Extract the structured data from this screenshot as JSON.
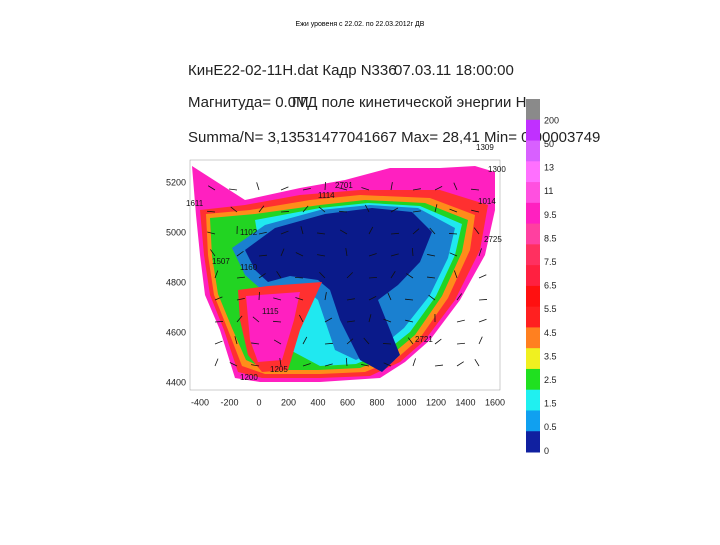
{
  "page_title": "Ежи уровеня с 22.02. по 22.03.2012г ДВ",
  "header": {
    "file": "КинЕ22-02-11Н.dat Кадр N336",
    "datetime": "07.03.11 18:00:00",
    "magnitude": "Магнитуда= 0.0М",
    "field": "ГГД поле кинетической энергии Н.",
    "summary": "Summa/N= 3,13531477041667 Max= 28,41 Min= 0,00003749"
  },
  "x_ticks": [
    "-400",
    "-200",
    "0",
    "200",
    "400",
    "600",
    "800",
    "1000",
    "1200",
    "1400",
    "1600"
  ],
  "y_ticks": [
    "5200",
    "5000",
    "4800",
    "4600",
    "4400"
  ],
  "colorbar": [
    "200",
    "50",
    "13",
    "11",
    "9.5",
    "8.5",
    "7.5",
    "6.5",
    "5.5",
    "4.5",
    "3.5",
    "2.5",
    "1.5",
    "0.5",
    "0"
  ],
  "stations": [
    "1309",
    "2701",
    "1114",
    "1102",
    "1507",
    "1160",
    "1115",
    "1205",
    "1200",
    "2725",
    "1014",
    "1300",
    "1611",
    "2721"
  ]
}
